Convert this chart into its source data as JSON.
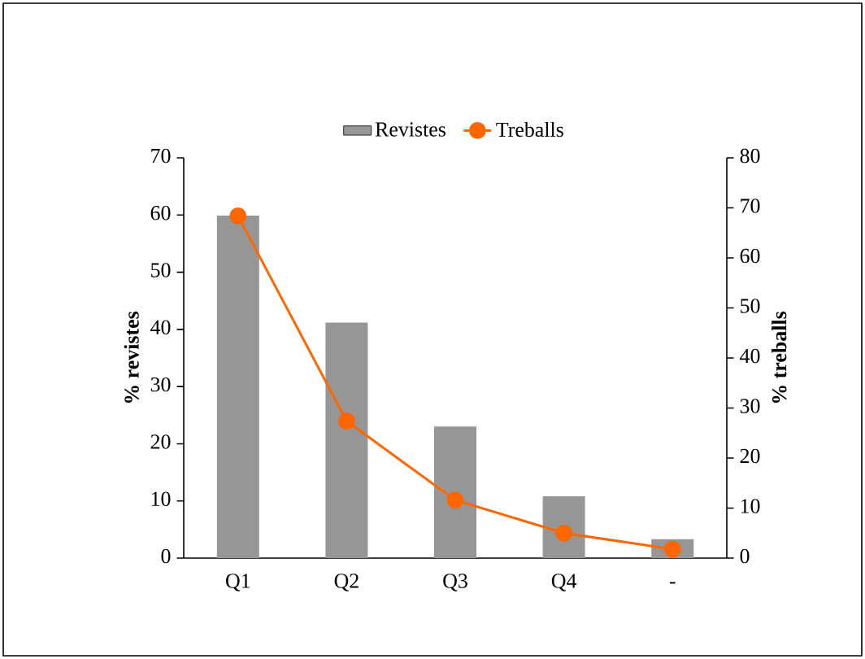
{
  "chart_data": {
    "type": "bar",
    "categories": [
      "Q1",
      "Q2",
      "Q3",
      "Q4",
      "-"
    ],
    "series": [
      {
        "name": "Revistes",
        "color": "#969696",
        "values": [
          59.9,
          41.2,
          23.0,
          10.8,
          3.3
        ]
      },
      {
        "name": "Treballs",
        "type": "line",
        "axis": "y2",
        "color": "#ff6600",
        "values": [
          68.4,
          27.4,
          11.6,
          5,
          1.8
        ]
      }
    ],
    "ylabel": "% revistes",
    "y2label": "% treballs",
    "ylim": [
      0,
      70
    ],
    "yticks": [
      0,
      10,
      20,
      30,
      40,
      50,
      60,
      70
    ],
    "y2lim": [
      0,
      80
    ],
    "y2ticks": [
      0,
      10,
      20,
      30,
      40,
      50,
      60,
      70,
      80
    ],
    "marker": "circle",
    "grid": false,
    "legend": "top"
  }
}
